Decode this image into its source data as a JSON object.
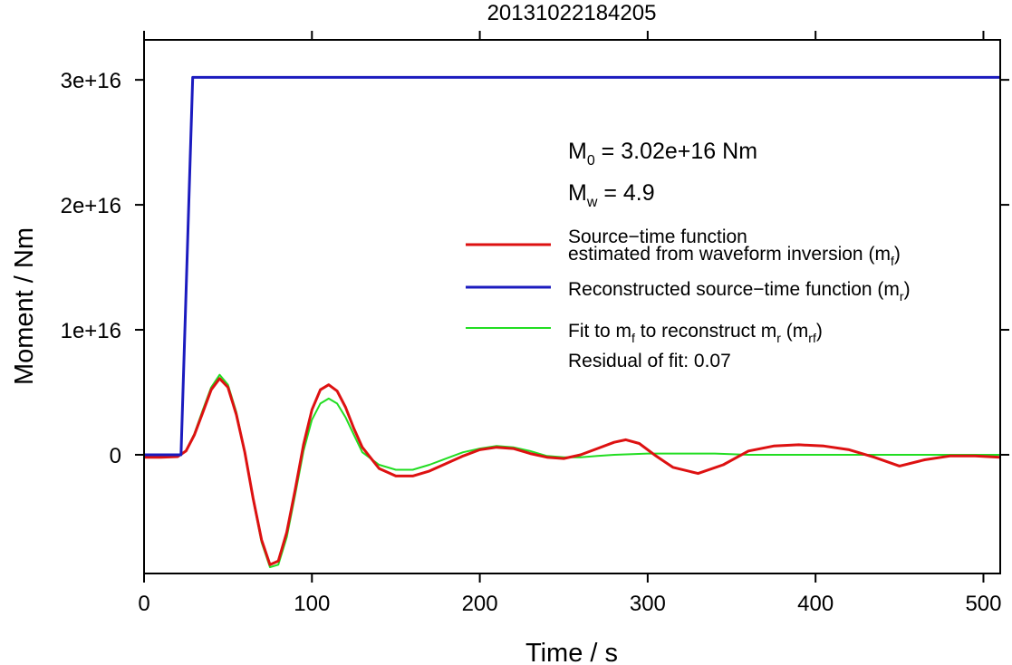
{
  "chart_data": {
    "type": "line",
    "title": "20131022184205",
    "xlabel": "Time / s",
    "ylabel": "Moment / Nm",
    "xlim": [
      0,
      510
    ],
    "ylim": [
      -9500000000000000.0,
      3.32e+16
    ],
    "x_ticks": [
      0,
      100,
      200,
      300,
      400,
      500
    ],
    "x_tick_labels": [
      "0",
      "100",
      "200",
      "300",
      "400",
      "500"
    ],
    "y_ticks": [
      0,
      1e+16,
      2e+16,
      3e+16
    ],
    "y_tick_labels": [
      "0",
      "1e+16",
      "2e+16",
      "3e+16"
    ],
    "grid": false,
    "annotations": {
      "m0": {
        "symbol": "M",
        "sub": "0",
        "text": " = 3.02e+16 Nm"
      },
      "mw": {
        "symbol": "M",
        "sub": "w",
        "text": " = 4.9"
      },
      "residual": "Residual of fit: 0.07"
    },
    "legend_position": "right",
    "series": [
      {
        "name_line1": "Source−time function",
        "name_line2_pre": "estimated from waveform inversion (m",
        "name_line2_sub": "f",
        "name_line2_post": ")",
        "color": "#dd1111",
        "x": [
          0,
          10,
          20,
          25,
          30,
          35,
          40,
          45,
          50,
          55,
          60,
          65,
          70,
          75,
          80,
          85,
          90,
          95,
          100,
          105,
          110,
          115,
          120,
          125,
          130,
          140,
          150,
          160,
          170,
          180,
          190,
          200,
          210,
          220,
          230,
          240,
          250,
          260,
          270,
          280,
          287,
          295,
          305,
          315,
          330,
          345,
          360,
          375,
          390,
          405,
          420,
          435,
          450,
          465,
          480,
          495,
          510
        ],
        "values": [
          -200000000000000.0,
          -200000000000000.0,
          -150000000000000.0,
          300000000000000.0,
          1600000000000000.0,
          3400000000000000.0,
          5200000000000000.0,
          6100000000000000.0,
          5400000000000000.0,
          3200000000000000.0,
          200000000000000.0,
          -3500000000000000.0,
          -6800000000000000.0,
          -8800000000000000.0,
          -8500000000000000.0,
          -6200000000000000.0,
          -2800000000000000.0,
          800000000000000.0,
          3600000000000000.0,
          5200000000000000.0,
          5600000000000000.0,
          5100000000000000.0,
          3800000000000000.0,
          2100000000000000.0,
          600000000000000.0,
          -1100000000000000.0,
          -1700000000000000.0,
          -1700000000000000.0,
          -1300000000000000.0,
          -700000000000000.0,
          -100000000000000.0,
          400000000000000.0,
          600000000000000.0,
          500000000000000.0,
          100000000000000.0,
          -200000000000000.0,
          -300000000000000.0,
          0,
          500000000000000.0,
          1000000000000000.0,
          1200000000000000.0,
          900000000000000.0,
          -100000000000000.0,
          -1000000000000000.0,
          -1500000000000000.0,
          -800000000000000.0,
          300000000000000.0,
          700000000000000.0,
          800000000000000.0,
          700000000000000.0,
          400000000000000.0,
          -200000000000000.0,
          -900000000000000.0,
          -400000000000000.0,
          -100000000000000.0,
          -100000000000000.0,
          -200000000000000.0
        ]
      },
      {
        "name_pre": "Reconstructed source−time function (m",
        "name_sub": "r",
        "name_post": ")",
        "color": "#1b1bbf",
        "x": [
          0,
          22,
          29,
          510
        ],
        "values": [
          0,
          0,
          3.02e+16,
          3.02e+16
        ]
      },
      {
        "name_pre": "Fit to m",
        "name_sub1": "f",
        "name_mid": " to reconstruct m",
        "name_sub2": "r",
        "name_mid2": " (m",
        "name_sub3": "rf",
        "name_post": ")",
        "color": "#22dd22",
        "x": [
          0,
          10,
          20,
          25,
          30,
          35,
          40,
          45,
          50,
          55,
          60,
          65,
          70,
          75,
          80,
          85,
          90,
          95,
          100,
          105,
          110,
          115,
          120,
          125,
          130,
          140,
          150,
          160,
          170,
          180,
          190,
          200,
          210,
          220,
          230,
          240,
          250,
          260,
          270,
          280,
          300,
          320,
          340,
          360,
          380,
          400,
          420,
          440,
          460,
          480,
          510
        ],
        "values": [
          -200000000000000.0,
          -200000000000000.0,
          -150000000000000.0,
          300000000000000.0,
          1700000000000000.0,
          3600000000000000.0,
          5400000000000000.0,
          6400000000000000.0,
          5600000000000000.0,
          3400000000000000.0,
          200000000000000.0,
          -3600000000000000.0,
          -7000000000000000.0,
          -9000000000000000.0,
          -8800000000000000.0,
          -6600000000000000.0,
          -3200000000000000.0,
          300000000000000.0,
          2800000000000000.0,
          4100000000000000.0,
          4500000000000000.0,
          4100000000000000.0,
          3000000000000000.0,
          1600000000000000.0,
          200000000000000.0,
          -800000000000000.0,
          -1200000000000000.0,
          -1200000000000000.0,
          -800000000000000.0,
          -300000000000000.0,
          200000000000000.0,
          500000000000000.0,
          700000000000000.0,
          600000000000000.0,
          300000000000000.0,
          -100000000000000.0,
          -200000000000000.0,
          -200000000000000.0,
          -100000000000000.0,
          0,
          100000000000000.0,
          100000000000000.0,
          100000000000000.0,
          0,
          0,
          0,
          0,
          0,
          0,
          0,
          0
        ]
      }
    ]
  }
}
